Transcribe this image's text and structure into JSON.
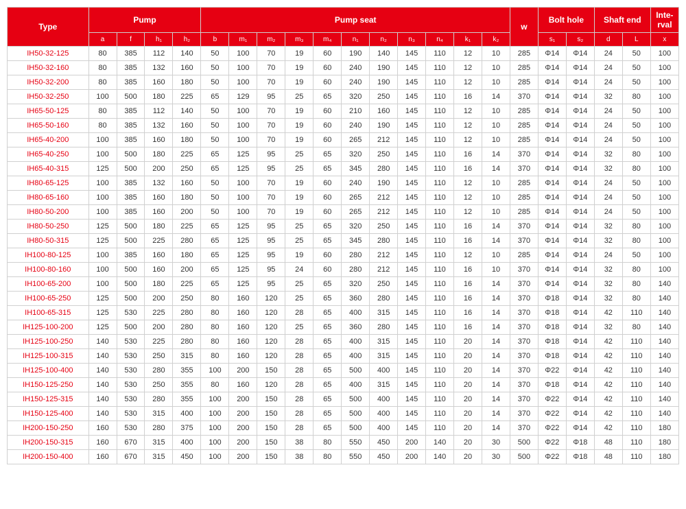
{
  "table": {
    "header_bg": "#e60012",
    "header_fg": "#ffffff",
    "border_color": "#d0d0d0",
    "text_color": "#333333",
    "type_color": "#e60012",
    "groups": [
      {
        "label": "Type",
        "span": 1,
        "rowspan": 2
      },
      {
        "label": "Pump",
        "span": 4
      },
      {
        "label": "Pump seat",
        "span": 11
      },
      {
        "label": "w",
        "span": 1,
        "rowspan": 2
      },
      {
        "label": "Bolt hole",
        "span": 2
      },
      {
        "label": "Shaft end",
        "span": 2
      },
      {
        "label": "Inte-rval",
        "span": 1
      }
    ],
    "subcols": [
      "a",
      "f",
      "h₁",
      "h₂",
      "b",
      "m₁",
      "m₂",
      "m₃",
      "m₄",
      "n₁",
      "n₂",
      "n₃",
      "n₄",
      "k₁",
      "k₂",
      "s₁",
      "s₂",
      "d",
      "L",
      "x"
    ],
    "rows": [
      [
        "IH50-32-125",
        80,
        385,
        112,
        140,
        50,
        100,
        70,
        19,
        60,
        190,
        140,
        145,
        110,
        12,
        10,
        285,
        "Φ14",
        "Φ14",
        24,
        50,
        100
      ],
      [
        "IH50-32-160",
        80,
        385,
        132,
        160,
        50,
        100,
        70,
        19,
        60,
        240,
        190,
        145,
        110,
        12,
        10,
        285,
        "Φ14",
        "Φ14",
        24,
        50,
        100
      ],
      [
        "IH50-32-200",
        80,
        385,
        160,
        180,
        50,
        100,
        70,
        19,
        60,
        240,
        190,
        145,
        110,
        12,
        10,
        285,
        "Φ14",
        "Φ14",
        24,
        50,
        100
      ],
      [
        "IH50-32-250",
        100,
        500,
        180,
        225,
        65,
        129,
        95,
        25,
        65,
        320,
        250,
        145,
        110,
        16,
        14,
        370,
        "Φ14",
        "Φ14",
        32,
        80,
        100
      ],
      [
        "IH65-50-125",
        80,
        385,
        112,
        140,
        50,
        100,
        70,
        19,
        60,
        210,
        160,
        145,
        110,
        12,
        10,
        285,
        "Φ14",
        "Φ14",
        24,
        50,
        100
      ],
      [
        "IH65-50-160",
        80,
        385,
        132,
        160,
        50,
        100,
        70,
        19,
        60,
        240,
        190,
        145,
        110,
        12,
        10,
        285,
        "Φ14",
        "Φ14",
        24,
        50,
        100
      ],
      [
        "IH65-40-200",
        100,
        385,
        160,
        180,
        50,
        100,
        70,
        19,
        60,
        265,
        212,
        145,
        110,
        12,
        10,
        285,
        "Φ14",
        "Φ14",
        24,
        50,
        100
      ],
      [
        "IH65-40-250",
        100,
        500,
        180,
        225,
        65,
        125,
        95,
        25,
        65,
        320,
        250,
        145,
        110,
        16,
        14,
        370,
        "Φ14",
        "Φ14",
        32,
        80,
        100
      ],
      [
        "IH65-40-315",
        125,
        500,
        200,
        250,
        65,
        125,
        95,
        25,
        65,
        345,
        280,
        145,
        110,
        16,
        14,
        370,
        "Φ14",
        "Φ14",
        32,
        80,
        100
      ],
      [
        "IH80-65-125",
        100,
        385,
        132,
        160,
        50,
        100,
        70,
        19,
        60,
        240,
        190,
        145,
        110,
        12,
        10,
        285,
        "Φ14",
        "Φ14",
        24,
        50,
        100
      ],
      [
        "IH80-65-160",
        100,
        385,
        160,
        180,
        50,
        100,
        70,
        19,
        60,
        265,
        212,
        145,
        110,
        12,
        10,
        285,
        "Φ14",
        "Φ14",
        24,
        50,
        100
      ],
      [
        "IH80-50-200",
        100,
        385,
        160,
        200,
        50,
        100,
        70,
        19,
        60,
        265,
        212,
        145,
        110,
        12,
        10,
        285,
        "Φ14",
        "Φ14",
        24,
        50,
        100
      ],
      [
        "IH80-50-250",
        125,
        500,
        180,
        225,
        65,
        125,
        95,
        25,
        65,
        320,
        250,
        145,
        110,
        16,
        14,
        370,
        "Φ14",
        "Φ14",
        32,
        80,
        100
      ],
      [
        "IH80-50-315",
        125,
        500,
        225,
        280,
        65,
        125,
        95,
        25,
        65,
        345,
        280,
        145,
        110,
        16,
        14,
        370,
        "Φ14",
        "Φ14",
        32,
        80,
        100
      ],
      [
        "IH100-80-125",
        100,
        385,
        160,
        180,
        65,
        125,
        95,
        19,
        60,
        280,
        212,
        145,
        110,
        12,
        10,
        285,
        "Φ14",
        "Φ14",
        24,
        50,
        100
      ],
      [
        "IH100-80-160",
        100,
        500,
        160,
        200,
        65,
        125,
        95,
        24,
        60,
        280,
        212,
        145,
        110,
        16,
        10,
        370,
        "Φ14",
        "Φ14",
        32,
        80,
        100
      ],
      [
        "IH100-65-200",
        100,
        500,
        180,
        225,
        65,
        125,
        95,
        25,
        65,
        320,
        250,
        145,
        110,
        16,
        14,
        370,
        "Φ14",
        "Φ14",
        32,
        80,
        140
      ],
      [
        "IH100-65-250",
        125,
        500,
        200,
        250,
        80,
        160,
        120,
        25,
        65,
        360,
        280,
        145,
        110,
        16,
        14,
        370,
        "Φ18",
        "Φ14",
        32,
        80,
        140
      ],
      [
        "IH100-65-315",
        125,
        530,
        225,
        280,
        80,
        160,
        120,
        28,
        65,
        400,
        315,
        145,
        110,
        16,
        14,
        370,
        "Φ18",
        "Φ14",
        42,
        110,
        140
      ],
      [
        "IH125-100-200",
        125,
        500,
        200,
        280,
        80,
        160,
        120,
        25,
        65,
        360,
        280,
        145,
        110,
        16,
        14,
        370,
        "Φ18",
        "Φ14",
        32,
        80,
        140
      ],
      [
        "IH125-100-250",
        140,
        530,
        225,
        280,
        80,
        160,
        120,
        28,
        65,
        400,
        315,
        145,
        110,
        20,
        14,
        370,
        "Φ18",
        "Φ14",
        42,
        110,
        140
      ],
      [
        "IH125-100-315",
        140,
        530,
        250,
        315,
        80,
        160,
        120,
        28,
        65,
        400,
        315,
        145,
        110,
        20,
        14,
        370,
        "Φ18",
        "Φ14",
        42,
        110,
        140
      ],
      [
        "IH125-100-400",
        140,
        530,
        280,
        355,
        100,
        200,
        150,
        28,
        65,
        500,
        400,
        145,
        110,
        20,
        14,
        370,
        "Φ22",
        "Φ14",
        42,
        110,
        140
      ],
      [
        "IH150-125-250",
        140,
        530,
        250,
        355,
        80,
        160,
        120,
        28,
        65,
        400,
        315,
        145,
        110,
        20,
        14,
        370,
        "Φ18",
        "Φ14",
        42,
        110,
        140
      ],
      [
        "IH150-125-315",
        140,
        530,
        280,
        355,
        100,
        200,
        150,
        28,
        65,
        500,
        400,
        145,
        110,
        20,
        14,
        370,
        "Φ22",
        "Φ14",
        42,
        110,
        140
      ],
      [
        "IH150-125-400",
        140,
        530,
        315,
        400,
        100,
        200,
        150,
        28,
        65,
        500,
        400,
        145,
        110,
        20,
        14,
        370,
        "Φ22",
        "Φ14",
        42,
        110,
        140
      ],
      [
        "IH200-150-250",
        160,
        530,
        280,
        375,
        100,
        200,
        150,
        28,
        65,
        500,
        400,
        145,
        110,
        20,
        14,
        370,
        "Φ22",
        "Φ14",
        42,
        110,
        180
      ],
      [
        "IH200-150-315",
        160,
        670,
        315,
        400,
        100,
        200,
        150,
        38,
        80,
        550,
        450,
        200,
        140,
        20,
        30,
        500,
        "Φ22",
        "Φ18",
        48,
        110,
        180
      ],
      [
        "IH200-150-400",
        160,
        670,
        315,
        450,
        100,
        200,
        150,
        38,
        80,
        550,
        450,
        200,
        140,
        20,
        30,
        500,
        "Φ22",
        "Φ18",
        48,
        110,
        180
      ]
    ]
  }
}
